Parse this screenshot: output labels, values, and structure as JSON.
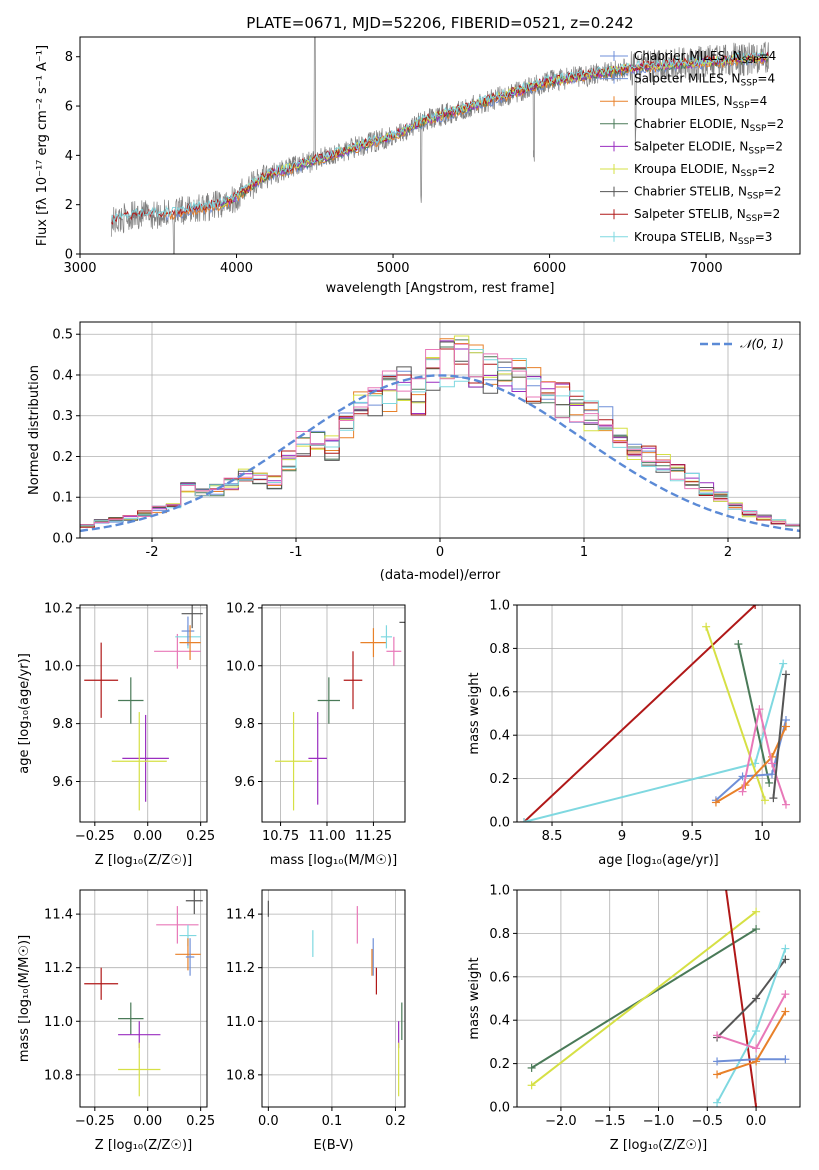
{
  "figure_title": "PLATE=0671, MJD=52206, FIBERID=0521, z=0.242",
  "colors": {
    "Chabrier MILES": "#6f8fd8",
    "Salpeter MILES": "#6f8fd8",
    "Kroupa MILES": "#e8812a",
    "Chabrier ELODIE": "#4a7a58",
    "Salpeter ELODIE": "#9a2ec0",
    "Kroupa ELODIE": "#d6e045",
    "Chabrier STELIB": "#555555",
    "Salpeter STELIB": "#b01818",
    "Kroupa STELIB": "#7fd8e0",
    "extra": "#e878b8",
    "normal": "#5b8ad6",
    "data": "#808080"
  },
  "legend": [
    {
      "name": "Chabrier MILES, N",
      "sub": "SSP",
      "n": "=4",
      "key": "Chabrier MILES"
    },
    {
      "name": "Salpeter MILES, N",
      "sub": "SSP",
      "n": "=4",
      "key": "Salpeter MILES"
    },
    {
      "name": "Kroupa MILES, N",
      "sub": "SSP",
      "n": "=4",
      "key": "Kroupa MILES"
    },
    {
      "name": "Chabrier ELODIE, N",
      "sub": "SSP",
      "n": "=2",
      "key": "Chabrier ELODIE"
    },
    {
      "name": "Salpeter ELODIE, N",
      "sub": "SSP",
      "n": "=2",
      "key": "Salpeter ELODIE"
    },
    {
      "name": "Kroupa ELODIE, N",
      "sub": "SSP",
      "n": "=2",
      "key": "Kroupa ELODIE"
    },
    {
      "name": "Chabrier STELIB, N",
      "sub": "SSP",
      "n": "=2",
      "key": "Chabrier STELIB"
    },
    {
      "name": "Salpeter STELIB, N",
      "sub": "SSP",
      "n": "=2",
      "key": "Salpeter STELIB"
    },
    {
      "name": "Kroupa STELIB, N",
      "sub": "SSP",
      "n": "=3",
      "key": "Kroupa STELIB"
    }
  ],
  "chart_data": [
    {
      "id": "spectrum",
      "type": "line",
      "xlabel": "wavelength [Angstrom, rest frame]",
      "ylabel": "Flux [fλ 10⁻¹⁷ erg cm⁻² s⁻¹ A⁻¹]",
      "xlim": [
        3000,
        7600
      ],
      "ylim": [
        0,
        8.8
      ],
      "xticks": [
        3000,
        4000,
        5000,
        6000,
        7000
      ],
      "yticks": [
        0,
        2,
        4,
        6,
        8
      ],
      "continuum_points": {
        "x": [
          3200,
          3300,
          3400,
          3500,
          3600,
          3700,
          3800,
          3900,
          4000,
          4100,
          4200,
          4300,
          4400,
          4500,
          4600,
          4700,
          4800,
          4900,
          5000,
          5100,
          5200,
          5300,
          5400,
          5500,
          5600,
          5700,
          5800,
          5900,
          6000,
          6100,
          6200,
          6300,
          6400,
          6500,
          6600,
          6700,
          6800,
          6900,
          7000,
          7100,
          7200,
          7300,
          7400
        ],
        "y": [
          1.3,
          1.5,
          1.6,
          1.6,
          1.65,
          1.8,
          1.9,
          2.0,
          2.3,
          2.8,
          3.2,
          3.4,
          3.6,
          3.8,
          4.0,
          4.2,
          4.4,
          4.6,
          4.8,
          5.1,
          5.4,
          5.6,
          5.8,
          6.0,
          6.2,
          6.4,
          6.6,
          6.8,
          7.0,
          7.1,
          7.2,
          7.3,
          7.4,
          7.5,
          7.6,
          7.6,
          7.7,
          7.7,
          7.8,
          7.8,
          7.9,
          7.9,
          8.0
        ]
      }
    },
    {
      "id": "residuals",
      "type": "histogram",
      "xlabel": "(data-model)/error",
      "ylabel": "Normed distribution",
      "xlim": [
        -2.5,
        2.5
      ],
      "ylim": [
        0,
        0.53
      ],
      "xticks": [
        -2,
        -1,
        0,
        1,
        2
      ],
      "yticks": [
        0.0,
        0.1,
        0.2,
        0.3,
        0.4,
        0.5
      ],
      "legend_label": "𝒩(0, 1)",
      "legend_placement": "upper right",
      "bin_edges_step": 0.1,
      "base_values": [
        0.03,
        0.04,
        0.045,
        0.05,
        0.06,
        0.07,
        0.085,
        0.12,
        0.11,
        0.12,
        0.13,
        0.15,
        0.145,
        0.14,
        0.19,
        0.23,
        0.24,
        0.22,
        0.28,
        0.32,
        0.33,
        0.36,
        0.38,
        0.35,
        0.42,
        0.43,
        0.44,
        0.42,
        0.4,
        0.41,
        0.39,
        0.38,
        0.36,
        0.34,
        0.32,
        0.3,
        0.29,
        0.24,
        0.21,
        0.2,
        0.18,
        0.16,
        0.14,
        0.12,
        0.1,
        0.08,
        0.06,
        0.05,
        0.04,
        0.03
      ]
    },
    {
      "id": "age_vs_Z",
      "type": "scatter",
      "xlabel": "Z [log₁₀(Z/Z☉)]",
      "ylabel": "age  [log₁₀(age/yr)]",
      "xlim": [
        -0.32,
        0.28
      ],
      "ylim": [
        9.46,
        10.21
      ],
      "xticks": [
        -0.25,
        0.0,
        0.25
      ],
      "xticklabels": [
        "−0.25",
        "0.00",
        "0.25"
      ],
      "yticks": [
        9.6,
        9.8,
        10.0,
        10.2
      ],
      "points": [
        {
          "key": "Salpeter STELIB",
          "x": -0.22,
          "y": 9.95,
          "xerr": 0.08,
          "yerr": 0.13
        },
        {
          "key": "Chabrier ELODIE",
          "x": -0.08,
          "y": 9.88,
          "xerr": 0.06,
          "yerr": 0.08
        },
        {
          "key": "Salpeter ELODIE",
          "x": -0.01,
          "y": 9.68,
          "xerr": 0.11,
          "yerr": 0.15
        },
        {
          "key": "Kroupa ELODIE",
          "x": -0.04,
          "y": 9.67,
          "xerr": 0.13,
          "yerr": 0.17
        },
        {
          "key": "extra",
          "x": 0.14,
          "y": 10.05,
          "xerr": 0.11,
          "yerr": 0.06
        },
        {
          "key": "Kroupa STELIB",
          "x": 0.19,
          "y": 10.1,
          "xerr": 0.06,
          "yerr": 0.04
        },
        {
          "key": "Chabrier MILES",
          "x": 0.19,
          "y": 10.12,
          "xerr": 0.03,
          "yerr": 0.05
        },
        {
          "key": "Kroupa MILES",
          "x": 0.2,
          "y": 10.08,
          "xerr": 0.05,
          "yerr": 0.06
        },
        {
          "key": "Chabrier STELIB",
          "x": 0.21,
          "y": 10.18,
          "xerr": 0.05,
          "yerr": 0.05
        }
      ]
    },
    {
      "id": "age_vs_mass",
      "type": "scatter",
      "xlabel": "mass [log₁₀(M/M☉)]",
      "ylabel": "",
      "xlim": [
        10.65,
        11.42
      ],
      "ylim": [
        9.46,
        10.21
      ],
      "xticks": [
        10.75,
        11.0,
        11.25
      ],
      "xticklabels": [
        "10.75",
        "11.00",
        "11.25"
      ],
      "yticks": [
        9.6,
        9.8,
        10.0,
        10.2
      ],
      "points": [
        {
          "key": "Salpeter STELIB",
          "x": 11.14,
          "y": 9.95,
          "xerr": 0.05,
          "yerr": 0.1
        },
        {
          "key": "Chabrier ELODIE",
          "x": 11.01,
          "y": 9.88,
          "xerr": 0.06,
          "yerr": 0.08
        },
        {
          "key": "Salpeter ELODIE",
          "x": 10.95,
          "y": 9.68,
          "xerr": 0.05,
          "yerr": 0.16
        },
        {
          "key": "Kroupa ELODIE",
          "x": 10.82,
          "y": 9.67,
          "xerr": 0.1,
          "yerr": 0.17
        },
        {
          "key": "Kroupa MILES",
          "x": 11.25,
          "y": 10.08,
          "xerr": 0.07,
          "yerr": 0.05
        },
        {
          "key": "extra",
          "x": 11.36,
          "y": 10.05,
          "xerr": 0.04,
          "yerr": 0.05
        },
        {
          "key": "Kroupa STELIB",
          "x": 11.32,
          "y": 10.1,
          "xerr": 0.03,
          "yerr": 0.04
        },
        {
          "key": "Chabrier STELIB",
          "x": 11.43,
          "y": 10.15,
          "xerr": 0.04,
          "yerr": 0.04
        }
      ]
    },
    {
      "id": "weight_vs_age",
      "type": "line",
      "xlabel": "age  [log₁₀(age/yr)]",
      "ylabel": "mass weight",
      "xlim": [
        8.25,
        10.27
      ],
      "ylim": [
        0.0,
        1.0
      ],
      "xticks": [
        8.5,
        9.0,
        9.5,
        10.0
      ],
      "yticks": [
        0.0,
        0.2,
        0.4,
        0.6,
        0.8,
        1.0
      ],
      "series": [
        {
          "key": "Salpeter STELIB",
          "x": [
            8.3,
            9.95
          ],
          "y": [
            0.0,
            1.0
          ]
        },
        {
          "key": "Kroupa STELIB",
          "x": [
            8.3,
            9.95,
            10.15
          ],
          "y": [
            0.0,
            0.27,
            0.73
          ]
        },
        {
          "key": "Kroupa ELODIE",
          "x": [
            9.6,
            10.02
          ],
          "y": [
            0.9,
            0.1
          ]
        },
        {
          "key": "Chabrier ELODIE",
          "x": [
            9.83,
            10.05
          ],
          "y": [
            0.82,
            0.18
          ]
        },
        {
          "key": "Chabrier MILES",
          "x": [
            9.67,
            9.86,
            10.07,
            10.17
          ],
          "y": [
            0.1,
            0.21,
            0.22,
            0.47
          ]
        },
        {
          "key": "Kroupa MILES",
          "x": [
            9.67,
            9.88,
            10.07,
            10.17
          ],
          "y": [
            0.09,
            0.17,
            0.3,
            0.44
          ]
        },
        {
          "key": "extra",
          "x": [
            9.86,
            9.98,
            10.07,
            10.17
          ],
          "y": [
            0.14,
            0.52,
            0.27,
            0.08
          ]
        },
        {
          "key": "Chabrier STELIB",
          "x": [
            10.08,
            10.17
          ],
          "y": [
            0.11,
            0.68
          ]
        }
      ]
    },
    {
      "id": "mass_vs_Z",
      "type": "scatter",
      "xlabel": "Z [log₁₀(Z/Z☉)]",
      "ylabel": "mass [log₁₀(M/M☉)]",
      "xlim": [
        -0.32,
        0.28
      ],
      "ylim": [
        10.68,
        11.49
      ],
      "xticks": [
        -0.25,
        0.0,
        0.25
      ],
      "xticklabels": [
        "−0.25",
        "0.00",
        "0.25"
      ],
      "yticks": [
        10.8,
        11.0,
        11.2,
        11.4
      ],
      "points": [
        {
          "key": "Salpeter STELIB",
          "x": -0.22,
          "y": 11.14,
          "xerr": 0.08,
          "yerr": 0.06
        },
        {
          "key": "Chabrier ELODIE",
          "x": -0.08,
          "y": 11.01,
          "xerr": 0.06,
          "yerr": 0.06
        },
        {
          "key": "Salpeter ELODIE",
          "x": -0.04,
          "y": 10.95,
          "xerr": 0.1,
          "yerr": 0.05
        },
        {
          "key": "Kroupa ELODIE",
          "x": -0.04,
          "y": 10.82,
          "xerr": 0.1,
          "yerr": 0.1
        },
        {
          "key": "extra",
          "x": 0.14,
          "y": 11.36,
          "xerr": 0.1,
          "yerr": 0.07
        },
        {
          "key": "Kroupa STELIB",
          "x": 0.19,
          "y": 11.32,
          "xerr": 0.04,
          "yerr": 0.04
        },
        {
          "key": "Kroupa MILES",
          "x": 0.19,
          "y": 11.25,
          "xerr": 0.06,
          "yerr": 0.06
        },
        {
          "key": "Chabrier MILES",
          "x": 0.2,
          "y": 11.24,
          "xerr": 0.02,
          "yerr": 0.07
        },
        {
          "key": "Chabrier STELIB",
          "x": 0.22,
          "y": 11.45,
          "xerr": 0.04,
          "yerr": 0.05
        }
      ]
    },
    {
      "id": "mass_vs_ebv",
      "type": "scatter",
      "xlabel": "E(B-V)",
      "ylabel": "",
      "xlim": [
        -0.01,
        0.215
      ],
      "ylim": [
        10.68,
        11.49
      ],
      "xticks": [
        0.0,
        0.1,
        0.2
      ],
      "xticklabels": [
        "0.0",
        "0.1",
        "0.2"
      ],
      "yticks": [
        10.8,
        11.0,
        11.2,
        11.4
      ],
      "points": [
        {
          "key": "Chabrier STELIB",
          "x": 0.0,
          "y": 11.42,
          "xerr": 0.0,
          "yerr": 0.03
        },
        {
          "key": "Kroupa STELIB",
          "x": 0.07,
          "y": 11.29,
          "xerr": 0.0,
          "yerr": 0.05
        },
        {
          "key": "extra",
          "x": 0.14,
          "y": 11.36,
          "xerr": 0.0,
          "yerr": 0.07
        },
        {
          "key": "Chabrier MILES",
          "x": 0.165,
          "y": 11.24,
          "xerr": 0.0,
          "yerr": 0.07
        },
        {
          "key": "Kroupa MILES",
          "x": 0.163,
          "y": 11.22,
          "xerr": 0.0,
          "yerr": 0.05
        },
        {
          "key": "Salpeter STELIB",
          "x": 0.17,
          "y": 11.15,
          "xerr": 0.0,
          "yerr": 0.05
        },
        {
          "key": "Salpeter ELODIE",
          "x": 0.205,
          "y": 10.95,
          "xerr": 0.0,
          "yerr": 0.05
        },
        {
          "key": "Chabrier ELODIE",
          "x": 0.21,
          "y": 11.0,
          "xerr": 0.0,
          "yerr": 0.07
        },
        {
          "key": "Kroupa ELODIE",
          "x": 0.205,
          "y": 10.82,
          "xerr": 0.0,
          "yerr": 0.1
        }
      ]
    },
    {
      "id": "weight_vs_Z",
      "type": "line",
      "xlabel": "Z [log₁₀(Z/Z☉)]",
      "ylabel": "mass weight",
      "xlim": [
        -2.45,
        0.45
      ],
      "ylim": [
        0.0,
        1.0
      ],
      "xticks": [
        -2.0,
        -1.5,
        -1.0,
        -0.5,
        0.0
      ],
      "xticklabels": [
        "−2.0",
        "−1.5",
        "−1.0",
        "−0.5",
        "0.0"
      ],
      "yticks": [
        0.0,
        0.2,
        0.4,
        0.6,
        0.8,
        1.0
      ],
      "series": [
        {
          "key": "Chabrier ELODIE",
          "x": [
            -2.3,
            0.0
          ],
          "y": [
            0.18,
            0.82
          ]
        },
        {
          "key": "Kroupa ELODIE",
          "x": [
            -2.3,
            0.0
          ],
          "y": [
            0.1,
            0.9
          ]
        },
        {
          "key": "Salpeter STELIB",
          "x": [
            -0.4,
            0.0
          ],
          "y": [
            1.3,
            0.0
          ]
        },
        {
          "key": "Chabrier STELIB",
          "x": [
            -0.4,
            0.0,
            0.3
          ],
          "y": [
            0.32,
            0.5,
            0.68
          ]
        },
        {
          "key": "Kroupa STELIB",
          "x": [
            -0.4,
            0.0,
            0.3
          ],
          "y": [
            0.02,
            0.35,
            0.73
          ]
        },
        {
          "key": "Chabrier MILES",
          "x": [
            -0.4,
            0.0,
            0.3
          ],
          "y": [
            0.21,
            0.22,
            0.22
          ]
        },
        {
          "key": "Kroupa MILES",
          "x": [
            -0.4,
            0.0,
            0.3
          ],
          "y": [
            0.15,
            0.21,
            0.44
          ]
        },
        {
          "key": "extra",
          "x": [
            -0.4,
            0.0,
            0.3
          ],
          "y": [
            0.33,
            0.27,
            0.52
          ]
        }
      ]
    }
  ]
}
